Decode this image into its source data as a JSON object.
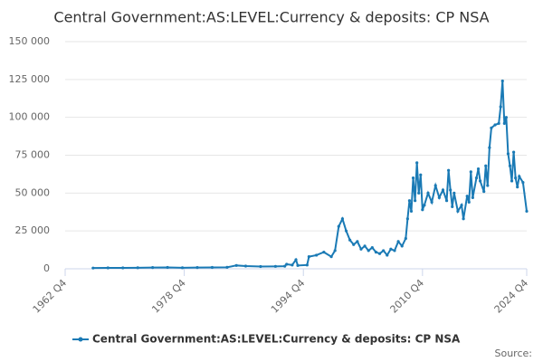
{
  "chart_data": {
    "type": "line",
    "title": "Central Government:AS:LEVEL:Currency & deposits: CP NSA",
    "source": "Source:",
    "xlim": [
      1962.75,
      2024.75
    ],
    "xticks": [
      {
        "value": 1962.75,
        "label": "1962 Q4"
      },
      {
        "value": 1978.75,
        "label": "1978 Q4"
      },
      {
        "value": 1994.75,
        "label": "1994 Q4"
      },
      {
        "value": 2010.75,
        "label": "2010 Q4"
      },
      {
        "value": 2024.75,
        "label": "2024 Q4"
      }
    ],
    "ylim": [
      0,
      150000
    ],
    "yticks": [
      0,
      {
        "value": 25000,
        "label": "25 000"
      },
      {
        "value": 50000,
        "label": "50 000"
      },
      {
        "value": 75000,
        "label": "75 000"
      },
      {
        "value": 100000,
        "label": "100 000"
      },
      {
        "value": 125000,
        "label": "125 000"
      },
      {
        "value": 150000,
        "label": "150 000"
      }
    ],
    "grid": true,
    "legend": "bottom",
    "x": [
      1966.5,
      1968.5,
      1970.5,
      1972.5,
      1974.5,
      1976.5,
      1978.5,
      1980.5,
      1982.5,
      1984.5,
      1985.75,
      1987,
      1989,
      1991,
      1992.25,
      1992.5,
      1993.25,
      1993.75,
      1994,
      1995.25,
      1995.5,
      1996.5,
      1997.5,
      1998.5,
      1999,
      1999.5,
      2000,
      2000.5,
      2001,
      2001.5,
      2002,
      2002.5,
      2003,
      2003.5,
      2004,
      2004.5,
      2005,
      2005.5,
      2006,
      2006.5,
      2007,
      2007.5,
      2008,
      2008.5,
      2008.75,
      2009,
      2009.25,
      2009.5,
      2009.75,
      2010,
      2010.25,
      2010.5,
      2010.75,
      2011,
      2011.5,
      2012,
      2012.5,
      2013,
      2013.5,
      2014,
      2014.25,
      2014.5,
      2014.75,
      2015,
      2015.5,
      2016,
      2016.25,
      2016.75,
      2017,
      2017.25,
      2017.5,
      2018,
      2018.25,
      2018.5,
      2019,
      2019.25,
      2019.5,
      2019.75,
      2020,
      2020.5,
      2021,
      2021.25,
      2021.5,
      2021.75,
      2022,
      2022.25,
      2022.5,
      2022.75,
      2023,
      2023.25,
      2023.5,
      2023.75,
      2024.25,
      2024.75
    ],
    "series": [
      {
        "name": "Central Government:AS:LEVEL:Currency & deposits: CP NSA",
        "color": "#1a7ab5",
        "values": [
          500,
          600,
          600,
          700,
          800,
          900,
          700,
          800,
          900,
          1000,
          2200,
          1800,
          1500,
          1600,
          1700,
          3000,
          2500,
          6000,
          2200,
          2500,
          8000,
          9000,
          11000,
          8000,
          12000,
          28000,
          33000,
          25000,
          19000,
          16000,
          18000,
          13000,
          15000,
          12000,
          14000,
          11000,
          10000,
          12000,
          9000,
          13000,
          12000,
          18000,
          15000,
          20000,
          33000,
          45000,
          38000,
          60000,
          45000,
          70000,
          50000,
          62000,
          39000,
          42000,
          50000,
          44000,
          55000,
          47000,
          52000,
          45000,
          65000,
          52000,
          41000,
          50000,
          38000,
          42000,
          33000,
          48000,
          44000,
          64000,
          47000,
          60000,
          66000,
          58000,
          51000,
          68000,
          55000,
          80000,
          93000,
          95000,
          96000,
          107000,
          124000,
          96000,
          100000,
          76000,
          68000,
          58000,
          77000,
          60000,
          54000,
          61000,
          57000,
          38000
        ]
      }
    ]
  }
}
